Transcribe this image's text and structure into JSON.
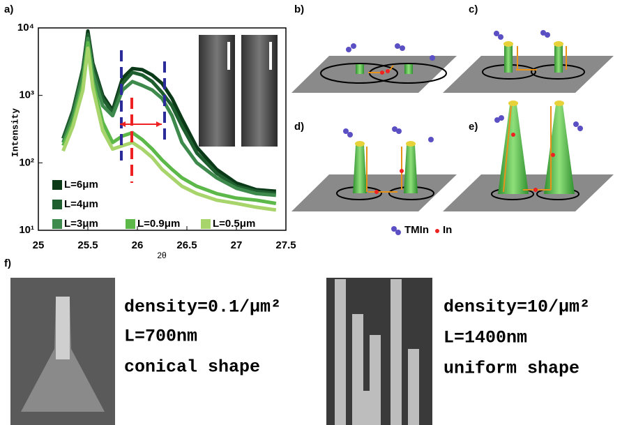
{
  "chart_data": {
    "type": "line",
    "y_label": "Intensity",
    "x_label": "2θ",
    "yscale": "log",
    "xlim": [
      25,
      27.5
    ],
    "xticks": [
      25,
      25.5,
      26,
      26.5,
      27,
      27.5
    ],
    "ylim": [
      10,
      10000
    ],
    "yticks": [
      {
        "value": 10,
        "label": "10¹"
      },
      {
        "value": 100,
        "label": "10²"
      },
      {
        "value": 1000,
        "label": "10³"
      },
      {
        "value": 10000,
        "label": "10⁴"
      }
    ],
    "x": [
      25.25,
      25.35,
      25.45,
      25.5,
      25.55,
      25.65,
      25.75,
      25.85,
      25.95,
      26.05,
      26.15,
      26.25,
      26.35,
      26.45,
      26.6,
      26.8,
      27.0,
      27.2,
      27.4
    ],
    "series": [
      {
        "name": "L=6μm",
        "color": "#0b3a18",
        "values": [
          230,
          600,
          2500,
          9000,
          3000,
          1000,
          600,
          1800,
          2500,
          2400,
          2000,
          1500,
          900,
          450,
          170,
          80,
          50,
          40,
          38
        ]
      },
      {
        "name": "L=4μm",
        "color": "#1f5e2e",
        "values": [
          230,
          600,
          2500,
          8000,
          2800,
          900,
          550,
          1500,
          2200,
          2000,
          1600,
          1100,
          700,
          350,
          140,
          70,
          45,
          38,
          35
        ]
      },
      {
        "name": "L=3μm",
        "color": "#3d8a4c",
        "values": [
          200,
          500,
          2000,
          7000,
          2200,
          700,
          500,
          1200,
          1600,
          1400,
          1200,
          900,
          500,
          200,
          100,
          60,
          42,
          35,
          33
        ]
      },
      {
        "name": "L=0.9μm",
        "color": "#5db84a",
        "values": [
          180,
          400,
          1500,
          6000,
          1600,
          400,
          200,
          250,
          280,
          220,
          160,
          110,
          80,
          60,
          45,
          35,
          30,
          28,
          25
        ]
      },
      {
        "name": "L=0.5μm",
        "color": "#a8d46c",
        "values": [
          150,
          350,
          1200,
          5000,
          1300,
          300,
          160,
          180,
          200,
          160,
          120,
          80,
          60,
          45,
          35,
          28,
          25,
          22,
          20
        ]
      }
    ]
  },
  "panels": {
    "a": "a)",
    "b": "b)",
    "c": "c)",
    "d": "d)",
    "e": "e)",
    "f": "f)"
  },
  "diagram_legend": {
    "tmin": "TMIn",
    "in": "In"
  },
  "panel_f": {
    "left": [
      "density=0.1/μm²",
      "L=700nm",
      "conical shape"
    ],
    "right": [
      "density=10/μm²",
      "L=1400nm",
      "uniform shape"
    ]
  }
}
